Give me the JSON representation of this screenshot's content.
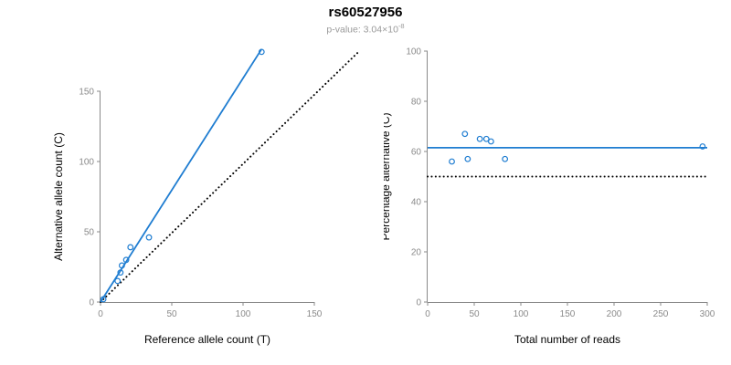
{
  "header": {
    "title": "rs60527956",
    "pvalue_prefix": "p-value: 3.04×10",
    "pvalue_exponent": "-8"
  },
  "colors": {
    "accent_blue": "#1f7dd1",
    "axis_gray": "#8a8a8a",
    "tick_label_gray": "#8a8a8a",
    "subtitle_gray": "#9a9a9a",
    "dotted_black": "#000000"
  },
  "chart_data": [
    {
      "type": "scatter",
      "panel": "left",
      "title": "rs60527956",
      "xlabel": "Reference allele count (T)",
      "ylabel": "Alternative allele count (C)",
      "xlim": [
        0,
        150
      ],
      "ylim": [
        0,
        150
      ],
      "xticks": [
        0,
        50,
        100,
        150
      ],
      "yticks": [
        0,
        50,
        100,
        150
      ],
      "grid": false,
      "legend": "none",
      "points": [
        [
          2,
          2
        ],
        [
          12,
          15
        ],
        [
          14,
          21
        ],
        [
          15,
          26
        ],
        [
          18,
          30
        ],
        [
          21,
          39
        ],
        [
          34,
          46
        ],
        [
          113,
          178
        ]
      ],
      "lines": [
        {
          "name": "identity-dotted-line",
          "x1": 0,
          "y1": 0,
          "x2": 181,
          "y2": 178,
          "style": "dotted",
          "color": "#000000"
        },
        {
          "name": "regression-line",
          "x1": 0,
          "y1": 0,
          "x2": 113,
          "y2": 180,
          "style": "solid",
          "color": "#1f7dd1",
          "width": 1.8
        }
      ]
    },
    {
      "type": "scatter",
      "panel": "right",
      "title": "rs60527956",
      "xlabel": "Total number of reads",
      "ylabel": "Percentage alternative (C)",
      "xlim": [
        0,
        300
      ],
      "ylim": [
        0,
        100
      ],
      "xticks": [
        0,
        50,
        100,
        150,
        200,
        250,
        300
      ],
      "yticks": [
        0,
        20,
        40,
        60,
        80,
        100
      ],
      "grid": false,
      "legend": "none",
      "points": [
        [
          26,
          56
        ],
        [
          40,
          67
        ],
        [
          43,
          57
        ],
        [
          56,
          65
        ],
        [
          63,
          65
        ],
        [
          68,
          64
        ],
        [
          83,
          57
        ],
        [
          295,
          62
        ]
      ],
      "lines": [
        {
          "name": "reference-50pct-dotted-line",
          "x1": 0,
          "y1": 50,
          "x2": 300,
          "y2": 50,
          "style": "dotted",
          "color": "#000000"
        },
        {
          "name": "mean-percentage-line",
          "x1": 0,
          "y1": 61.5,
          "x2": 300,
          "y2": 61.5,
          "style": "solid",
          "color": "#1f7dd1",
          "width": 1.8
        }
      ]
    }
  ]
}
